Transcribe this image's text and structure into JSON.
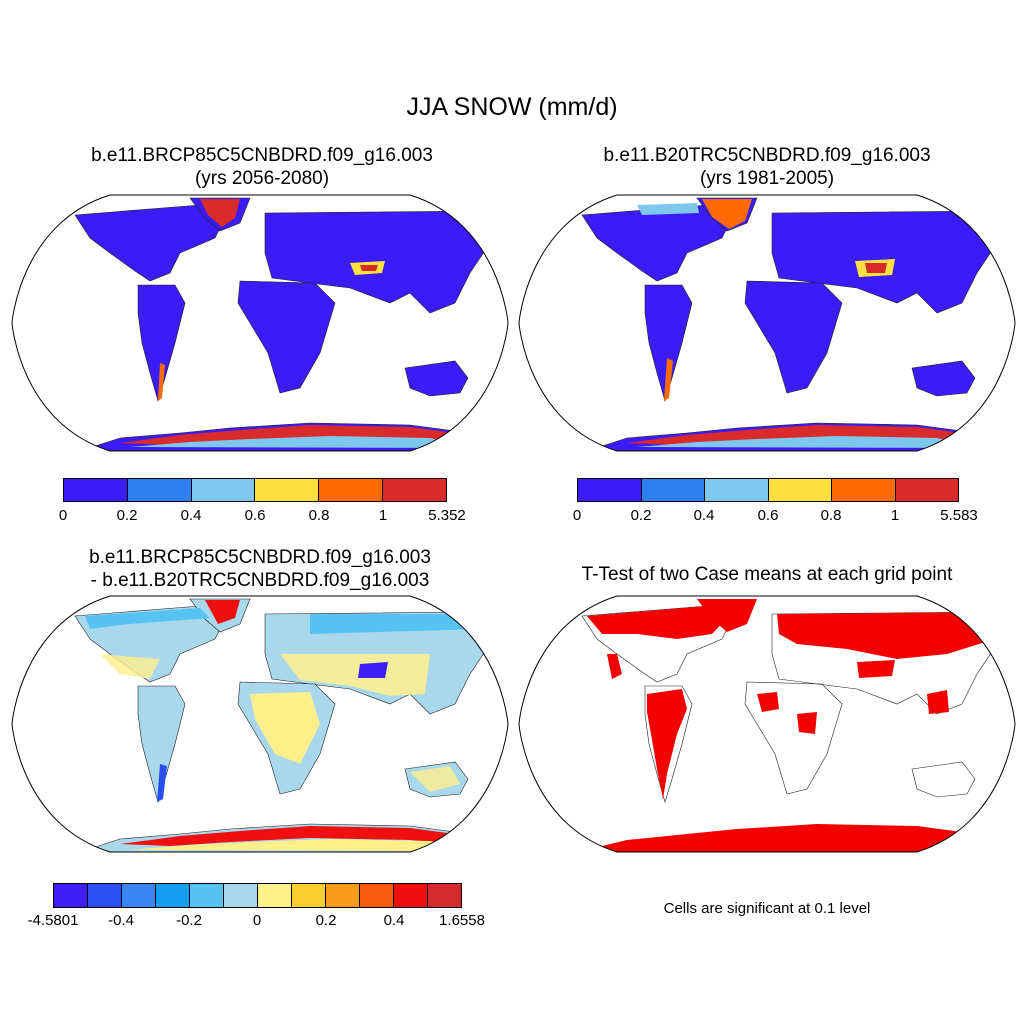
{
  "title": "JJA SNOW (mm/d)",
  "panels": {
    "p1": {
      "title_line1": "b.e11.BRCP85C5CNBDRD.f09_g16.003",
      "title_line2": "(yrs 2056-2080)"
    },
    "p2": {
      "title_line1": "b.e11.B20TRC5CNBDRD.f09_g16.003",
      "title_line2": "(yrs 1981-2005)"
    },
    "p3": {
      "title_line1": "b.e11.BRCP85C5CNBDRD.f09_g16.003",
      "title_line2": "- b.e11.B20TRC5CNBDRD.f09_g16.003"
    },
    "p4": {
      "title_line1": "T-Test of two Case means at each grid point",
      "note": "Cells are significant at 0.1 level"
    }
  },
  "colorbars": {
    "cb1": {
      "labels": [
        "0",
        "0.2",
        "0.4",
        "0.6",
        "0.8",
        "1",
        "5.352"
      ],
      "colors": [
        "#3c1cf6",
        "#2f7ff0",
        "#7ec8ee",
        "#fee040",
        "#fb6a00",
        "#d92b2b"
      ]
    },
    "cb2": {
      "labels": [
        "0",
        "0.2",
        "0.4",
        "0.6",
        "0.8",
        "1",
        "5.583"
      ],
      "colors": [
        "#3c1cf6",
        "#2f7ff0",
        "#7ec8ee",
        "#fee040",
        "#fb6a00",
        "#d92b2b"
      ]
    },
    "cb3": {
      "labels": [
        "-4.5801",
        "-0.4",
        "-0.2",
        "0",
        "0.2",
        "0.4",
        "1.6558"
      ],
      "colors": [
        "#3f1ef6",
        "#2a4ff0",
        "#3a86f2",
        "#149ef0",
        "#57c3f2",
        "#a9d8ed",
        "#fff08c",
        "#fdcf2e",
        "#fb9c1e",
        "#f95a10",
        "#ef0f0f",
        "#d32c2c"
      ]
    }
  },
  "colors": {
    "land_low": "#3c1cf6",
    "diff_land": "#a9d8ed",
    "diff_warm": "#fff08c",
    "sig": "#f40000"
  }
}
